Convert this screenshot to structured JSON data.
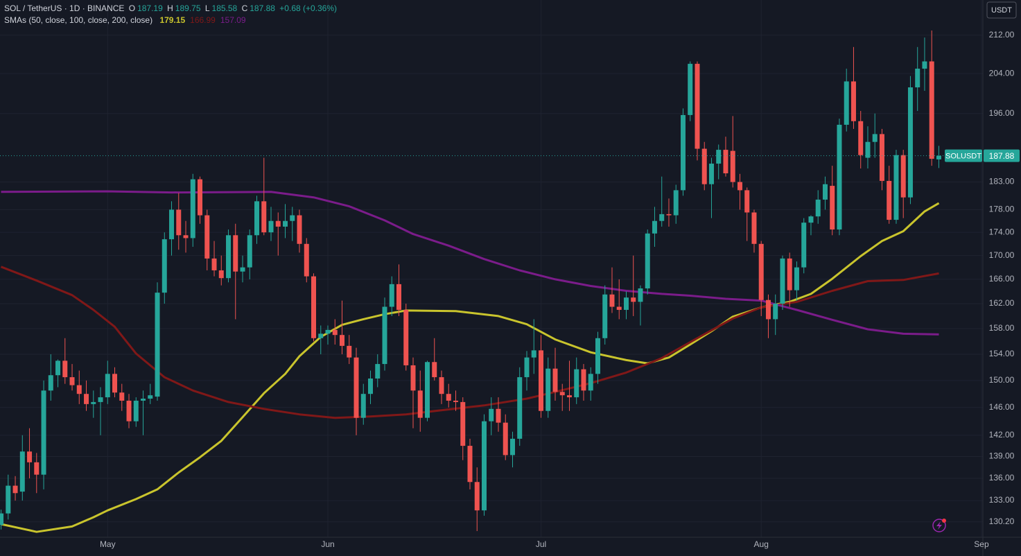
{
  "currency": "USDT",
  "ohlc_labels": [
    "O",
    "H",
    "L",
    "C"
  ],
  "change": "+0.68 (+0.36%)",
  "chart_data": {
    "type": "candlestick",
    "title": "SOL / TetherUS · 1D · BINANCE",
    "symbol_tag": "SOLUSDT",
    "indicator_label": "SMAs (50, close, 100, close, 200, close)",
    "up_color": "#26a69a",
    "down_color": "#ef5350",
    "log_scale": true,
    "grid": true,
    "open": [
      129.8,
      131.3,
      135.0,
      134.2,
      139.7,
      138.2,
      136.5,
      148.5,
      150.8,
      153.0,
      150.5,
      149.3,
      148.0,
      146.5,
      146.8,
      147.5,
      151.0,
      148.2,
      147.0,
      144.0,
      147.0,
      147.3,
      147.6,
      163.8,
      172.8,
      178.0,
      173.5,
      173.0,
      183.5,
      177.0,
      169.5,
      167.5,
      166.2,
      173.5,
      167.3,
      168.0,
      173.5,
      179.5,
      174.0,
      176.0,
      175.0,
      176.0,
      177.0,
      172.0,
      166.5,
      156.5,
      157.2,
      157.8,
      157.0,
      155.3,
      153.5,
      144.5,
      148.0,
      150.3,
      152.5,
      161.5,
      165.2,
      161.0,
      152.3,
      148.5,
      144.5,
      152.8,
      150.5,
      148.0,
      147.0,
      146.8,
      140.5,
      135.5,
      131.7,
      144.0,
      145.8,
      143.8,
      139.2,
      141.5,
      150.5,
      153.5,
      154.6,
      145.5,
      151.8,
      148.3,
      147.8,
      147.5,
      151.7,
      148.5,
      151.0,
      156.5,
      163.5,
      161.5,
      161.0,
      163.0,
      162.3,
      164.5,
      173.8,
      176.0,
      177.2,
      177.0,
      181.5,
      195.7,
      206.0,
      189.2,
      182.6,
      186.4,
      189.0,
      188.8,
      183.0,
      181.5,
      177.5,
      172.0,
      162.6,
      159.5,
      162.0,
      169.5,
      164.2,
      168.0,
      175.7,
      176.8,
      179.8,
      182.3,
      174.5,
      193.8,
      202.4,
      194.5,
      187.5,
      190.5,
      192.0,
      183.2,
      176.2,
      188.0,
      180.2,
      201.2,
      205.0,
      206.5,
      187.19
    ],
    "high": [
      131.8,
      136.5,
      136.3,
      142.0,
      143.0,
      139.5,
      150.0,
      154.0,
      153.2,
      156.5,
      152.5,
      151.5,
      150.0,
      148.5,
      149.0,
      153.0,
      152.0,
      149.5,
      148.0,
      147.5,
      148.5,
      149.5,
      165.5,
      174.0,
      179.5,
      181.0,
      176.0,
      184.5,
      184.0,
      178.0,
      172.5,
      170.0,
      174.5,
      175.5,
      170.0,
      174.5,
      180.5,
      187.5,
      178.5,
      177.5,
      179.0,
      178.5,
      178.0,
      173.0,
      167.0,
      158.5,
      158.5,
      159.5,
      162.5,
      157.0,
      155.0,
      149.5,
      151.5,
      154.0,
      163.0,
      166.5,
      168.5,
      162.0,
      153.5,
      151.5,
      153.0,
      156.5,
      151.5,
      149.5,
      148.5,
      147.5,
      141.5,
      137.5,
      145.0,
      147.5,
      147.5,
      145.0,
      142.5,
      152.0,
      154.5,
      159.5,
      157.0,
      153.5,
      155.0,
      149.5,
      153.0,
      153.5,
      152.5,
      152.0,
      157.5,
      165.0,
      168.0,
      166.0,
      164.0,
      170.0,
      165.0,
      174.5,
      178.5,
      184.0,
      180.0,
      182.5,
      197.0,
      206.5,
      206.5,
      190.5,
      187.5,
      190.0,
      191.5,
      195.5,
      184.5,
      182.0,
      178.0,
      172.5,
      163.5,
      163.5,
      170.0,
      170.5,
      169.0,
      176.5,
      177.0,
      181.5,
      184.0,
      186.0,
      195.0,
      205.0,
      209.5,
      196.5,
      193.5,
      196.0,
      193.0,
      186.0,
      189.0,
      189.0,
      203.5,
      209.5,
      211.5,
      213.0,
      189.75
    ],
    "low": [
      129.2,
      130.5,
      133.0,
      133.0,
      136.0,
      134.0,
      134.5,
      147.0,
      149.0,
      149.5,
      148.5,
      146.5,
      145.5,
      144.5,
      142.0,
      146.5,
      147.5,
      145.5,
      143.0,
      143.2,
      142.0,
      146.5,
      147.0,
      162.0,
      170.0,
      171.0,
      170.5,
      171.5,
      175.5,
      167.5,
      166.5,
      165.0,
      165.5,
      159.5,
      165.5,
      166.0,
      172.0,
      173.5,
      172.5,
      170.0,
      173.0,
      172.5,
      170.5,
      165.5,
      156.0,
      154.0,
      155.5,
      155.5,
      154.0,
      152.5,
      142.0,
      143.5,
      146.5,
      149.0,
      151.5,
      160.0,
      160.0,
      151.5,
      143.0,
      142.5,
      144.0,
      150.0,
      146.5,
      146.0,
      145.5,
      138.5,
      134.5,
      129.0,
      131.0,
      142.0,
      142.5,
      138.5,
      137.5,
      140.5,
      148.5,
      151.0,
      144.5,
      144.5,
      147.0,
      145.5,
      145.5,
      146.5,
      147.0,
      147.0,
      149.5,
      155.5,
      160.5,
      159.5,
      159.5,
      160.0,
      158.5,
      163.5,
      171.5,
      175.0,
      175.0,
      175.5,
      180.5,
      194.5,
      187.0,
      181.5,
      176.5,
      183.5,
      184.0,
      182.0,
      178.0,
      172.5,
      170.5,
      160.0,
      156.5,
      157.0,
      161.0,
      161.5,
      162.5,
      167.0,
      173.5,
      175.5,
      178.0,
      173.5,
      173.5,
      192.5,
      193.0,
      185.5,
      185.5,
      187.5,
      181.5,
      175.5,
      175.5,
      176.5,
      179.0,
      196.5,
      200.5,
      186.0,
      185.58
    ],
    "close": [
      131.3,
      135.0,
      134.0,
      139.7,
      138.2,
      136.5,
      148.5,
      150.8,
      153.0,
      150.5,
      149.3,
      148.0,
      146.5,
      146.8,
      147.5,
      151.0,
      148.2,
      147.0,
      144.0,
      147.0,
      147.3,
      147.8,
      163.8,
      172.8,
      178.0,
      173.5,
      173.0,
      183.5,
      177.0,
      169.5,
      167.5,
      166.2,
      173.5,
      167.3,
      168.0,
      173.5,
      179.5,
      174.0,
      176.0,
      175.0,
      176.0,
      177.0,
      172.0,
      166.5,
      156.5,
      157.2,
      157.8,
      157.0,
      155.3,
      153.5,
      144.5,
      148.0,
      150.3,
      152.5,
      161.5,
      165.2,
      161.0,
      152.3,
      148.5,
      144.5,
      152.8,
      150.5,
      148.0,
      147.0,
      146.8,
      140.5,
      135.5,
      131.7,
      144.0,
      145.8,
      143.8,
      139.2,
      141.5,
      150.5,
      153.5,
      154.6,
      145.5,
      151.8,
      148.3,
      147.8,
      147.5,
      151.7,
      148.5,
      151.0,
      156.5,
      163.5,
      161.5,
      161.0,
      163.0,
      162.3,
      164.5,
      173.8,
      176.0,
      177.2,
      177.0,
      181.5,
      195.7,
      206.0,
      189.2,
      182.6,
      186.4,
      189.0,
      184.6,
      183.0,
      181.5,
      177.5,
      172.0,
      162.6,
      159.5,
      162.0,
      169.5,
      164.2,
      168.0,
      175.7,
      176.8,
      179.8,
      182.6,
      174.5,
      193.8,
      202.4,
      194.5,
      188.0,
      190.5,
      192.0,
      183.2,
      176.2,
      188.0,
      180.2,
      201.2,
      205.0,
      206.5,
      187.3,
      187.88
    ],
    "series": [
      {
        "color": "#c9c42d",
        "x": [
          0,
          4,
          5,
          10,
          13,
          15,
          19,
          22,
          25,
          28,
          31,
          34,
          37,
          40,
          42,
          45,
          48,
          51,
          54,
          57,
          64,
          70,
          74,
          78,
          83,
          88,
          91,
          94,
          97,
          100,
          103,
          107,
          111,
          114,
          117,
          121,
          124,
          127,
          130,
          132
        ],
        "values": [
          129.9,
          129.1,
          128.9,
          129.6,
          130.8,
          131.7,
          133.2,
          134.5,
          136.8,
          138.9,
          141.2,
          144.6,
          148.1,
          151.0,
          153.7,
          156.7,
          158.6,
          159.5,
          160.3,
          160.9,
          160.8,
          160.0,
          158.7,
          156.3,
          154.3,
          153.1,
          152.6,
          153.5,
          155.5,
          157.6,
          159.9,
          161.4,
          162.3,
          163.6,
          166.1,
          169.9,
          172.5,
          174.2,
          177.7,
          179.15
        ]
      },
      {
        "color": "#801818",
        "x": [
          0,
          5,
          10,
          13,
          16,
          19,
          23,
          27,
          32,
          37,
          42,
          47,
          52,
          57,
          62,
          68,
          74,
          78,
          83,
          88,
          93,
          98,
          103,
          107,
          112,
          117,
          122,
          127,
          132
        ],
        "values": [
          168.1,
          165.8,
          163.4,
          161.0,
          158.3,
          154.1,
          150.5,
          148.5,
          146.8,
          145.8,
          145.0,
          144.5,
          144.7,
          145.0,
          145.6,
          146.3,
          147.3,
          148.3,
          149.6,
          151.2,
          153.4,
          156.5,
          159.6,
          161.4,
          162.3,
          164.1,
          165.7,
          165.9,
          166.99
        ]
      },
      {
        "color": "#7b1c8a",
        "x": [
          0,
          15,
          24,
          38,
          44,
          49,
          54,
          58,
          63,
          68,
          73,
          78,
          83,
          88,
          93,
          97,
          102,
          107,
          112,
          117,
          122,
          127,
          132
        ],
        "values": [
          181.2,
          181.3,
          181.1,
          181.2,
          180.2,
          178.6,
          176.1,
          173.7,
          171.7,
          169.4,
          167.5,
          166.0,
          164.9,
          164.1,
          163.6,
          163.3,
          162.8,
          162.5,
          161.0,
          159.4,
          157.9,
          157.2,
          157.09
        ]
      }
    ],
    "xlim": [
      -0.15,
      138.2
    ],
    "xticks": [
      {
        "value": 15,
        "label": "May"
      },
      {
        "value": 46,
        "label": "Jun"
      },
      {
        "value": 76,
        "label": "Jul"
      },
      {
        "value": 107,
        "label": "Aug"
      },
      {
        "value": 138,
        "label": "Sep"
      }
    ],
    "ylim": [
      128.2,
      219.6
    ],
    "yticks": [
      {
        "value": 212,
        "label": "212.00"
      },
      {
        "value": 204,
        "label": "204.00"
      },
      {
        "value": 196,
        "label": "196.00"
      },
      {
        "value": 183,
        "label": "183.00"
      },
      {
        "value": 178,
        "label": "178.00"
      },
      {
        "value": 174,
        "label": "174.00"
      },
      {
        "value": 170,
        "label": "170.00"
      },
      {
        "value": 166,
        "label": "166.00"
      },
      {
        "value": 162,
        "label": "162.00"
      },
      {
        "value": 158,
        "label": "158.00"
      },
      {
        "value": 154,
        "label": "154.00"
      },
      {
        "value": 150,
        "label": "150.00"
      },
      {
        "value": 146,
        "label": "146.00"
      },
      {
        "value": 142,
        "label": "142.00"
      },
      {
        "value": 139,
        "label": "139.00"
      },
      {
        "value": 136,
        "label": "136.00"
      },
      {
        "value": 133,
        "label": "133.00"
      },
      {
        "value": 130.2,
        "label": "130.20"
      }
    ]
  }
}
